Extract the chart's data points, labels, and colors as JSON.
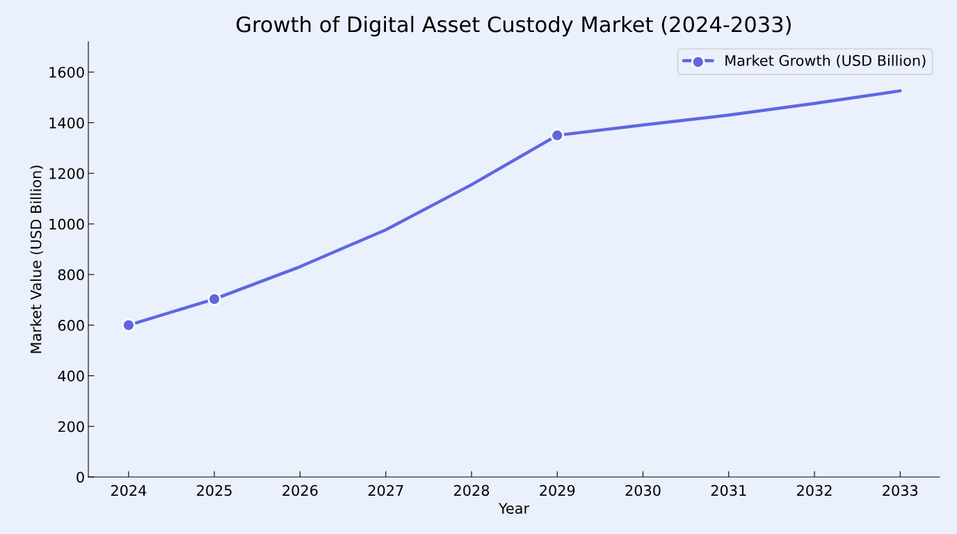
{
  "chart_data": {
    "type": "line",
    "title": "Growth of Digital Asset Custody Market (2024-2033)",
    "xlabel": "Year",
    "ylabel": "Market Value (USD Billion)",
    "x": [
      2024,
      2025,
      2026,
      2027,
      2028,
      2029,
      2030,
      2031,
      2032,
      2033
    ],
    "series": [
      {
        "name": "Market Growth (USD Billion)",
        "color": "#5f67e0",
        "values": [
          600,
          703,
          831,
          977,
          1155,
          1350,
          1391,
          1430,
          1476,
          1526
        ],
        "marker": "none"
      },
      {
        "type": "scatter",
        "color": "#5f67e0",
        "x": [
          2024,
          2025,
          2029
        ],
        "values": [
          600,
          703,
          1350
        ],
        "marker": "circle"
      }
    ],
    "xlim": [
      2023.53,
      2033.46
    ],
    "xticks": [
      2024,
      2025,
      2026,
      2027,
      2028,
      2029,
      2030,
      2031,
      2032,
      2033
    ],
    "ylim": [
      0,
      1720
    ],
    "yticks": [
      0,
      200,
      400,
      600,
      800,
      1000,
      1200,
      1400,
      1600
    ],
    "grid": false,
    "legend": "top right",
    "line_style": "solid"
  }
}
